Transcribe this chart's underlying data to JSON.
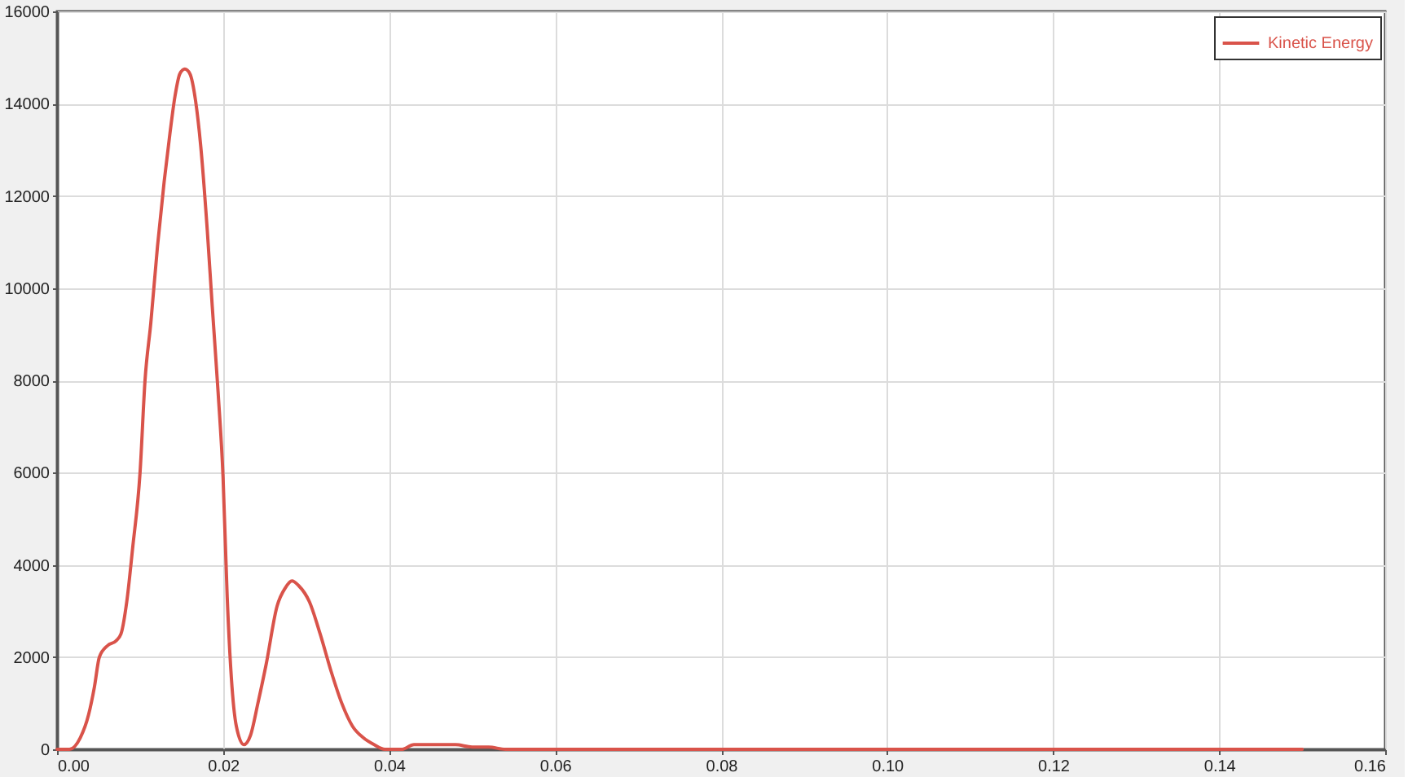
{
  "chart_data": {
    "type": "line",
    "x": [
      0,
      0.0015,
      0.0028,
      0.0038,
      0.0045,
      0.0051,
      0.0061,
      0.0071,
      0.0077,
      0.0084,
      0.0091,
      0.01,
      0.0106,
      0.0113,
      0.0121,
      0.0129,
      0.0136,
      0.0142,
      0.0148,
      0.0154,
      0.016,
      0.0167,
      0.0173,
      0.0181,
      0.0187,
      0.0194,
      0.02,
      0.0205,
      0.021,
      0.0216,
      0.0225,
      0.0233,
      0.0242,
      0.0252,
      0.0265,
      0.0275,
      0.0283,
      0.0291,
      0.0304,
      0.0317,
      0.033,
      0.0343,
      0.0356,
      0.0369,
      0.0382,
      0.0395,
      0.0415,
      0.043,
      0.045,
      0.048,
      0.05,
      0.052,
      0.054,
      0.15
    ],
    "series": [
      {
        "name": "Kinetic Energy",
        "color": "#d9534a",
        "values": [
          0,
          0,
          250,
          750,
          1350,
          2000,
          2250,
          2350,
          2500,
          3200,
          4350,
          6000,
          8000,
          9250,
          10900,
          12300,
          13350,
          14150,
          14650,
          14750,
          14650,
          14050,
          13100,
          11250,
          9600,
          7750,
          5900,
          3300,
          1550,
          500,
          100,
          300,
          1000,
          1850,
          3100,
          3500,
          3650,
          3550,
          3200,
          2500,
          1700,
          1000,
          500,
          250,
          100,
          0,
          0,
          100,
          100,
          100,
          50,
          50,
          0,
          0
        ]
      }
    ],
    "xlim": [
      0,
      0.16
    ],
    "ylim": [
      0,
      16000
    ],
    "xticks": [
      {
        "value": 0,
        "label": "0.00"
      },
      0.02,
      0.04,
      0.06,
      0.08,
      {
        "value": 0.1,
        "label": "0.10"
      },
      0.12,
      0.14,
      0.16
    ],
    "yticks": [
      0,
      2000,
      4000,
      6000,
      8000,
      10000,
      12000,
      14000,
      16000
    ],
    "grid": true,
    "legend": "top right",
    "line_style": "solid"
  }
}
